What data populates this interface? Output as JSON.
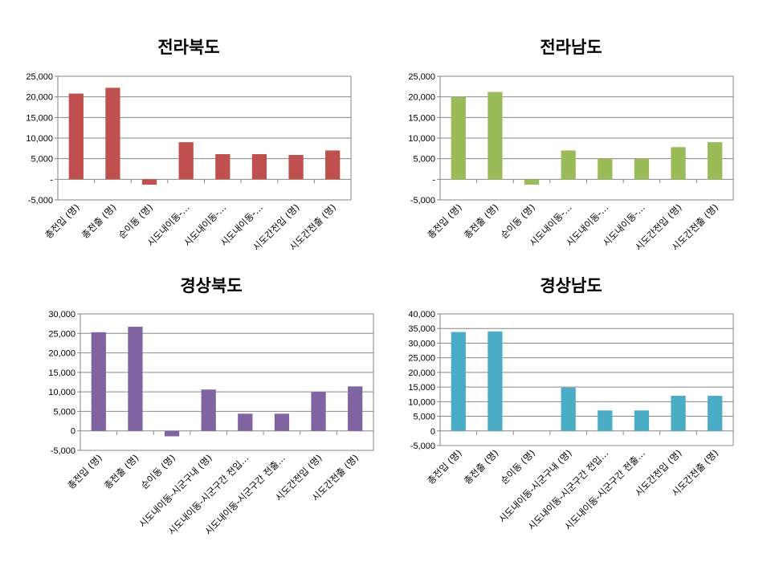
{
  "chart_data": [
    {
      "type": "bar",
      "title": "전라북도",
      "color": "#c0504d",
      "categories": [
        "총전입 (명)",
        "총전출 (명)",
        "순이동 (명)",
        "시도내이동-…",
        "시도내이동-…",
        "시도내이동-…",
        "시도간전입 (명)",
        "시도간전출 (명)"
      ],
      "values": [
        20800,
        22200,
        -1300,
        9000,
        6100,
        6100,
        5900,
        7000
      ],
      "ylim": [
        -5000,
        25000
      ],
      "yticks": [
        -5000,
        0,
        5000,
        10000,
        15000,
        20000,
        25000
      ],
      "ytick_labels": [
        "-5,000",
        "-",
        "5,000",
        "10,000",
        "15,000",
        "20,000",
        "25,000"
      ],
      "grid": true
    },
    {
      "type": "bar",
      "title": "전라남도",
      "color": "#9bbb59",
      "categories": [
        "총전입 (명)",
        "총전출 (명)",
        "순이동 (명)",
        "시도내이동-…",
        "시도내이동-…",
        "시도내이동-…",
        "시도간전입 (명)",
        "시도간전출 (명)"
      ],
      "values": [
        20000,
        21200,
        -1300,
        7000,
        5000,
        5000,
        7800,
        9000
      ],
      "ylim": [
        -5000,
        25000
      ],
      "yticks": [
        -5000,
        0,
        5000,
        10000,
        15000,
        20000,
        25000
      ],
      "ytick_labels": [
        "-5,000",
        "-",
        "5,000",
        "10,000",
        "15,000",
        "20,000",
        "25,000"
      ],
      "grid": true
    },
    {
      "type": "bar",
      "title": "경상북도",
      "color": "#8064a2",
      "categories": [
        "총전입 (명)",
        "총전출 (명)",
        "순이동 (명)",
        "시도내이동-시군구내 (명)",
        "시도내이동-시군구간 전입…",
        "시도내이동-시군구간 전출…",
        "시도간전입 (명)",
        "시도간전출 (명)"
      ],
      "values": [
        25300,
        26700,
        -1400,
        10600,
        4400,
        4400,
        10000,
        11400
      ],
      "ylim": [
        -5000,
        30000
      ],
      "yticks": [
        -5000,
        0,
        5000,
        10000,
        15000,
        20000,
        25000,
        30000
      ],
      "ytick_labels": [
        "-5,000",
        "0",
        "5,000",
        "10,000",
        "15,000",
        "20,000",
        "25,000",
        "30,000"
      ],
      "grid": true
    },
    {
      "type": "bar",
      "title": "경상남도",
      "color": "#4bacc6",
      "categories": [
        "총전입 (명)",
        "총전출 (명)",
        "순이동 (명)",
        "시도내이동-시군구내 (명)",
        "시도내이동-시군구간 전입…",
        "시도내이동-시군구간 전출…",
        "시도간전입 (명)",
        "시도간전출 (명)"
      ],
      "values": [
        33800,
        34000,
        0,
        14800,
        7000,
        7000,
        12000,
        12000
      ],
      "ylim": [
        -5000,
        40000
      ],
      "yticks": [
        -5000,
        0,
        5000,
        10000,
        15000,
        20000,
        25000,
        30000,
        35000,
        40000
      ],
      "ytick_labels": [
        "-5,000",
        "0",
        "5,000",
        "10,000",
        "15,000",
        "20,000",
        "25,000",
        "30,000",
        "35,000",
        "40,000"
      ],
      "grid": true
    }
  ]
}
